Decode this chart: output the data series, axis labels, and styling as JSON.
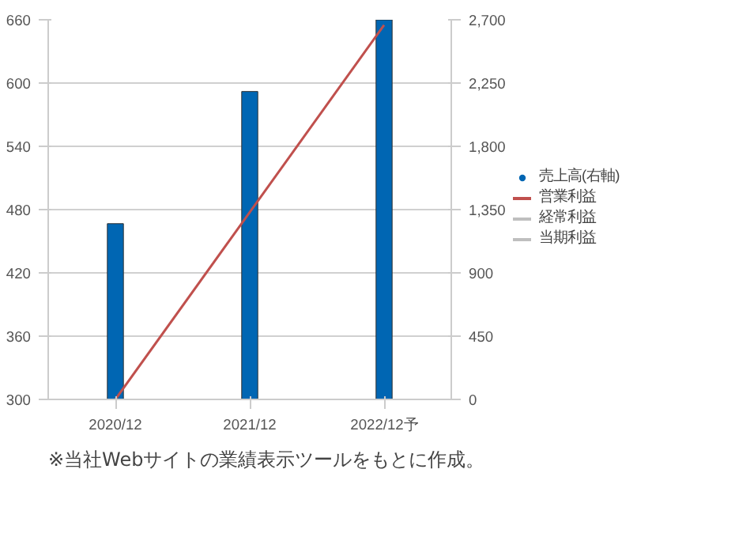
{
  "chart_data": {
    "type": "bar",
    "categories": [
      "2020/12",
      "2021/12",
      "2022/12予"
    ],
    "series": [
      {
        "name": "売上高(右軸)",
        "axis": "y2",
        "color": "#0066b3",
        "values": [
          1250,
          2190,
          2700
        ]
      },
      {
        "name": "営業利益",
        "type": "line",
        "axis": "y",
        "color": "#c0504d",
        "values": [
          300,
          null,
          655
        ]
      },
      {
        "name": "経常利益",
        "type": "line",
        "axis": "y",
        "color": "#bfbfbf",
        "values": [
          null,
          null,
          null
        ]
      },
      {
        "name": "当期利益",
        "type": "line",
        "axis": "y",
        "color": "#bfbfbf",
        "values": [
          null,
          null,
          null
        ]
      }
    ],
    "ylim": [
      300,
      660
    ],
    "yticks": [
      300,
      360,
      420,
      480,
      540,
      600,
      660
    ],
    "y2lim": [
      0,
      2700
    ],
    "y2ticks": [
      0,
      450,
      900,
      {
        "value": 1350,
        "label": "1,350"
      },
      {
        "value": 1800,
        "label": "1,800"
      },
      {
        "value": 2250,
        "label": "2,250"
      },
      {
        "value": 2700,
        "label": "2,700"
      }
    ],
    "grid": "y",
    "legend": "right",
    "annotations": [
      "※当社Webサイトの業績表示ツールをもとに作成。"
    ]
  }
}
